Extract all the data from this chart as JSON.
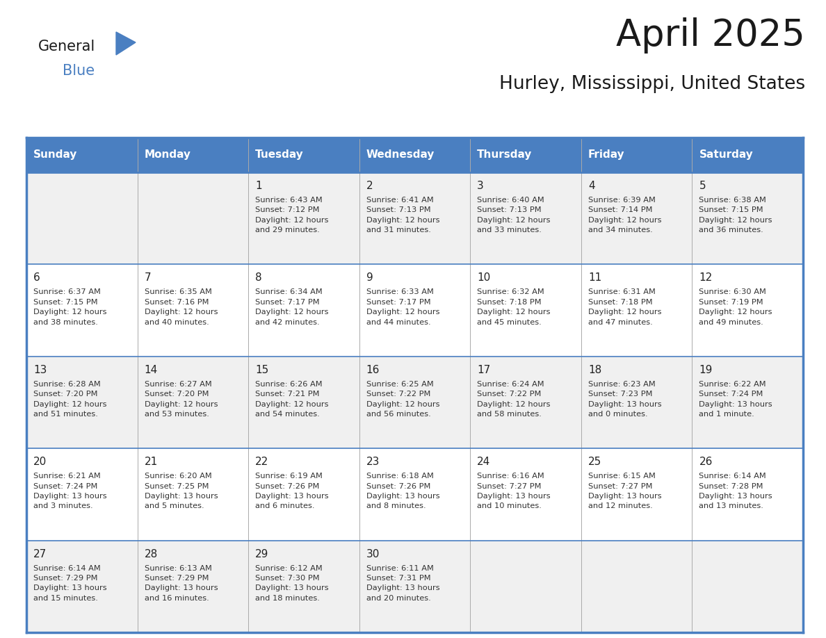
{
  "title": "April 2025",
  "subtitle": "Hurley, Mississippi, United States",
  "days_of_week": [
    "Sunday",
    "Monday",
    "Tuesday",
    "Wednesday",
    "Thursday",
    "Friday",
    "Saturday"
  ],
  "header_bg": "#4a7fc1",
  "header_text_color": "#FFFFFF",
  "cell_bg_light": "#f0f0f0",
  "cell_bg_white": "#FFFFFF",
  "cell_text_color": "#333333",
  "day_num_color": "#222222",
  "border_color": "#4a7fc1",
  "separator_color": "#4a7fc1",
  "calendar": [
    [
      null,
      null,
      {
        "day": 1,
        "sunrise": "6:43 AM",
        "sunset": "7:12 PM",
        "daylight": "12 hours\nand 29 minutes."
      },
      {
        "day": 2,
        "sunrise": "6:41 AM",
        "sunset": "7:13 PM",
        "daylight": "12 hours\nand 31 minutes."
      },
      {
        "day": 3,
        "sunrise": "6:40 AM",
        "sunset": "7:13 PM",
        "daylight": "12 hours\nand 33 minutes."
      },
      {
        "day": 4,
        "sunrise": "6:39 AM",
        "sunset": "7:14 PM",
        "daylight": "12 hours\nand 34 minutes."
      },
      {
        "day": 5,
        "sunrise": "6:38 AM",
        "sunset": "7:15 PM",
        "daylight": "12 hours\nand 36 minutes."
      }
    ],
    [
      {
        "day": 6,
        "sunrise": "6:37 AM",
        "sunset": "7:15 PM",
        "daylight": "12 hours\nand 38 minutes."
      },
      {
        "day": 7,
        "sunrise": "6:35 AM",
        "sunset": "7:16 PM",
        "daylight": "12 hours\nand 40 minutes."
      },
      {
        "day": 8,
        "sunrise": "6:34 AM",
        "sunset": "7:17 PM",
        "daylight": "12 hours\nand 42 minutes."
      },
      {
        "day": 9,
        "sunrise": "6:33 AM",
        "sunset": "7:17 PM",
        "daylight": "12 hours\nand 44 minutes."
      },
      {
        "day": 10,
        "sunrise": "6:32 AM",
        "sunset": "7:18 PM",
        "daylight": "12 hours\nand 45 minutes."
      },
      {
        "day": 11,
        "sunrise": "6:31 AM",
        "sunset": "7:18 PM",
        "daylight": "12 hours\nand 47 minutes."
      },
      {
        "day": 12,
        "sunrise": "6:30 AM",
        "sunset": "7:19 PM",
        "daylight": "12 hours\nand 49 minutes."
      }
    ],
    [
      {
        "day": 13,
        "sunrise": "6:28 AM",
        "sunset": "7:20 PM",
        "daylight": "12 hours\nand 51 minutes."
      },
      {
        "day": 14,
        "sunrise": "6:27 AM",
        "sunset": "7:20 PM",
        "daylight": "12 hours\nand 53 minutes."
      },
      {
        "day": 15,
        "sunrise": "6:26 AM",
        "sunset": "7:21 PM",
        "daylight": "12 hours\nand 54 minutes."
      },
      {
        "day": 16,
        "sunrise": "6:25 AM",
        "sunset": "7:22 PM",
        "daylight": "12 hours\nand 56 minutes."
      },
      {
        "day": 17,
        "sunrise": "6:24 AM",
        "sunset": "7:22 PM",
        "daylight": "12 hours\nand 58 minutes."
      },
      {
        "day": 18,
        "sunrise": "6:23 AM",
        "sunset": "7:23 PM",
        "daylight": "13 hours\nand 0 minutes."
      },
      {
        "day": 19,
        "sunrise": "6:22 AM",
        "sunset": "7:24 PM",
        "daylight": "13 hours\nand 1 minute."
      }
    ],
    [
      {
        "day": 20,
        "sunrise": "6:21 AM",
        "sunset": "7:24 PM",
        "daylight": "13 hours\nand 3 minutes."
      },
      {
        "day": 21,
        "sunrise": "6:20 AM",
        "sunset": "7:25 PM",
        "daylight": "13 hours\nand 5 minutes."
      },
      {
        "day": 22,
        "sunrise": "6:19 AM",
        "sunset": "7:26 PM",
        "daylight": "13 hours\nand 6 minutes."
      },
      {
        "day": 23,
        "sunrise": "6:18 AM",
        "sunset": "7:26 PM",
        "daylight": "13 hours\nand 8 minutes."
      },
      {
        "day": 24,
        "sunrise": "6:16 AM",
        "sunset": "7:27 PM",
        "daylight": "13 hours\nand 10 minutes."
      },
      {
        "day": 25,
        "sunrise": "6:15 AM",
        "sunset": "7:27 PM",
        "daylight": "13 hours\nand 12 minutes."
      },
      {
        "day": 26,
        "sunrise": "6:14 AM",
        "sunset": "7:28 PM",
        "daylight": "13 hours\nand 13 minutes."
      }
    ],
    [
      {
        "day": 27,
        "sunrise": "6:14 AM",
        "sunset": "7:29 PM",
        "daylight": "13 hours\nand 15 minutes."
      },
      {
        "day": 28,
        "sunrise": "6:13 AM",
        "sunset": "7:29 PM",
        "daylight": "13 hours\nand 16 minutes."
      },
      {
        "day": 29,
        "sunrise": "6:12 AM",
        "sunset": "7:30 PM",
        "daylight": "13 hours\nand 18 minutes."
      },
      {
        "day": 30,
        "sunrise": "6:11 AM",
        "sunset": "7:31 PM",
        "daylight": "13 hours\nand 20 minutes."
      },
      null,
      null,
      null
    ]
  ]
}
